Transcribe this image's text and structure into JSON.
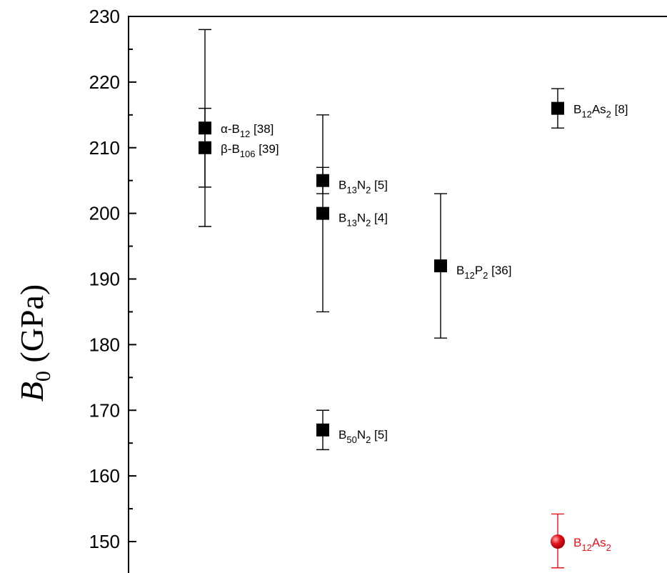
{
  "chart_data": {
    "type": "scatter",
    "title": "",
    "xlabel": "",
    "ylabel": {
      "symbol": "B",
      "subscript": "0",
      "unit": "(GPa)"
    },
    "ylim": [
      145,
      230
    ],
    "y_ticks": [
      150,
      160,
      170,
      180,
      190,
      200,
      210,
      220,
      230
    ],
    "x_ticks": [],
    "grid": false,
    "colors": {
      "experimental": "#000000",
      "this_work": "#e8141c"
    },
    "points": [
      {
        "label": {
          "main": "α-B",
          "sub": "12",
          "ref": " [38]"
        },
        "y": 213,
        "err_low": 204,
        "err_high": 216,
        "marker": "square",
        "color": "#000000"
      },
      {
        "label": {
          "main": "β-B",
          "sub": "106",
          "ref": " [39]"
        },
        "y": 210,
        "err_low": 198,
        "err_high": 228,
        "marker": "square",
        "color": "#000000"
      },
      {
        "label": {
          "main": "B",
          "sub": "13",
          "main2": "N",
          "sub2": "2",
          "ref": " [5]"
        },
        "y": 205,
        "err_low": 203,
        "err_high": 207,
        "marker": "square",
        "color": "#000000"
      },
      {
        "label": {
          "main": "B",
          "sub": "13",
          "main2": "N",
          "sub2": "2",
          "ref": " [4]"
        },
        "y": 200,
        "err_low": 185,
        "err_high": 215,
        "marker": "square",
        "color": "#000000"
      },
      {
        "label": {
          "main": "B",
          "sub": "50",
          "main2": "N",
          "sub2": "2",
          "ref": " [5]"
        },
        "y": 167,
        "err_low": 164,
        "err_high": 170,
        "marker": "square",
        "color": "#000000"
      },
      {
        "label": {
          "main": "B",
          "sub": "12",
          "main2": "P",
          "sub2": "2",
          "ref": " [36]"
        },
        "y": 192,
        "err_low": 181,
        "err_high": 203,
        "marker": "square",
        "color": "#000000"
      },
      {
        "label": {
          "main": "B",
          "sub": "12",
          "main2": "As",
          "sub2": "2",
          "ref": " [8]"
        },
        "y": 216,
        "err_low": 213,
        "err_high": 219,
        "marker": "square",
        "color": "#000000"
      },
      {
        "label": {
          "main": "B",
          "sub": "12",
          "main2": "As",
          "sub2": "2",
          "ref": ""
        },
        "y": 150,
        "err_low": 146,
        "err_high": 154.2,
        "marker": "circle",
        "color": "#e8141c"
      }
    ]
  }
}
